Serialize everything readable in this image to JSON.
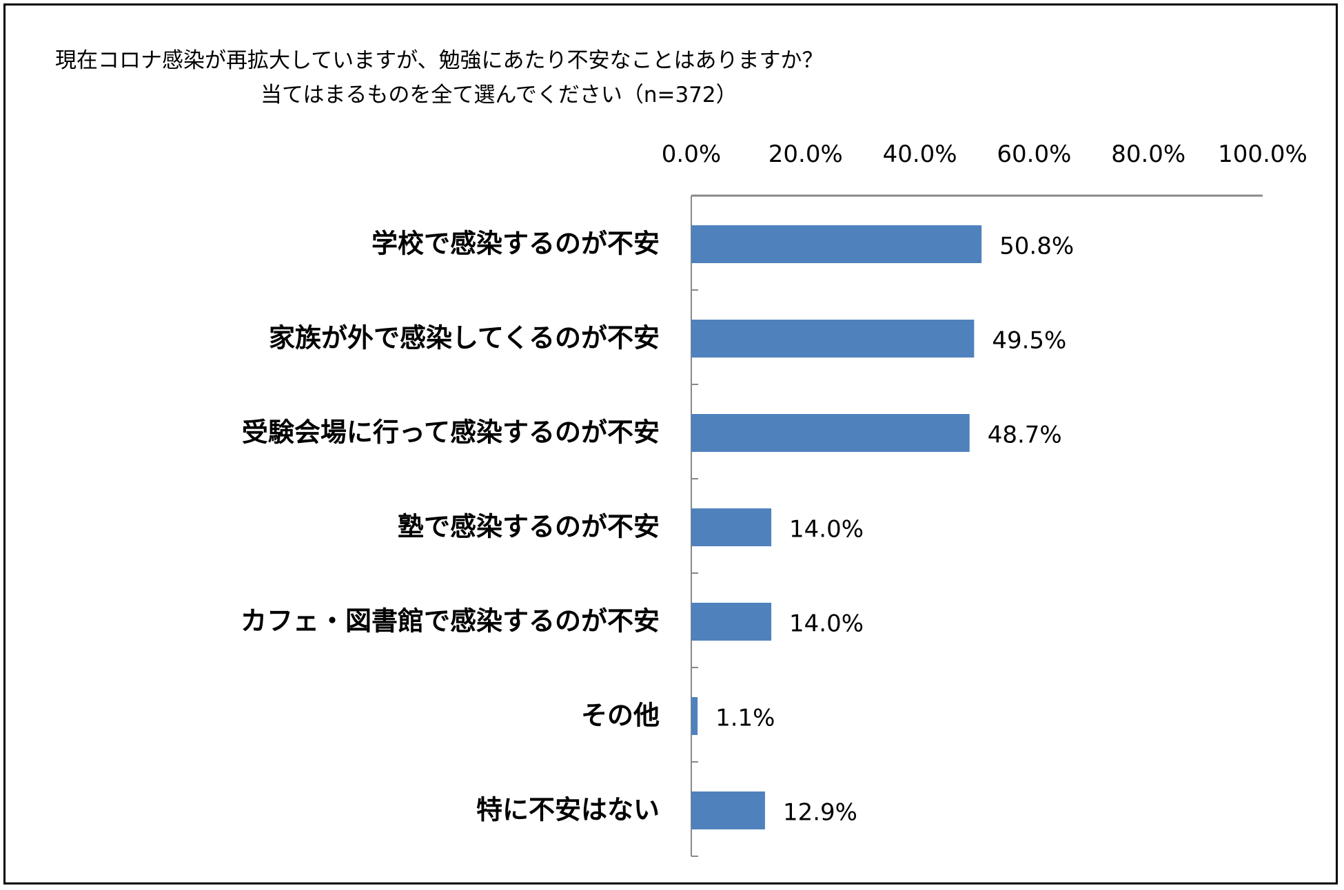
{
  "chart_data": {
    "type": "bar",
    "orientation": "horizontal",
    "title": "現在コロナ感染が再拡大していますが、勉強にあたり不安なことはありますか？",
    "subtitle": "当てはまるものを全て選んでください（n=372）",
    "categories": [
      "学校で感染するのが不安",
      "家族が外で感染してくるのが不安",
      "受験会場に行って感染するのが不安",
      "塾で感染するのが不安",
      "カフェ・図書館で感染するのが不安",
      "その他",
      "特に不安はない"
    ],
    "values": [
      50.8,
      49.5,
      48.7,
      14.0,
      14.0,
      1.1,
      12.9
    ],
    "data_labels": [
      "50.8%",
      "49.5%",
      "48.7%",
      "14.0%",
      "14.0%",
      "1.1%",
      "12.9%"
    ],
    "xlim": [
      0,
      100
    ],
    "x_ticks": [
      "0.0%",
      "20.0%",
      "40.0%",
      "60.0%",
      "80.0%",
      "100.0%"
    ],
    "x_axis_position": "top",
    "grid": false,
    "bar_color": "#4f81bd"
  }
}
